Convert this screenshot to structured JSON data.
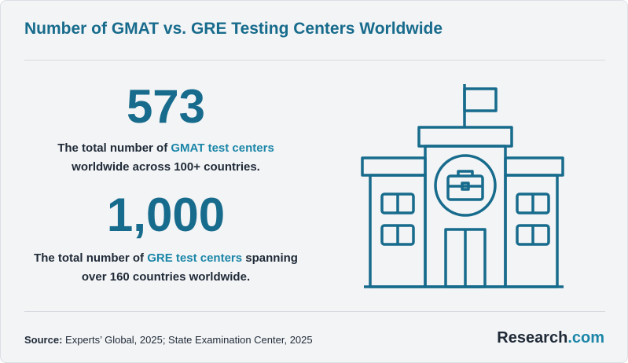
{
  "header": {
    "title": "Number of GMAT vs. GRE Testing Centers Worldwide"
  },
  "stats": [
    {
      "number": "573",
      "line1": [
        "The total number of ",
        "GMAT test centers"
      ],
      "line2": "worldwide across 100+ countries."
    },
    {
      "number": "1,000",
      "line1": [
        "The total number of ",
        "GRE test centers",
        " spanning"
      ],
      "line2": "over 160 countries worldwide."
    }
  ],
  "footer": {
    "source_label": "Source:",
    "source_text": " Experts’ Global, 2025; State Examination Center, 2025",
    "logo": [
      "Research",
      ".com"
    ]
  }
}
